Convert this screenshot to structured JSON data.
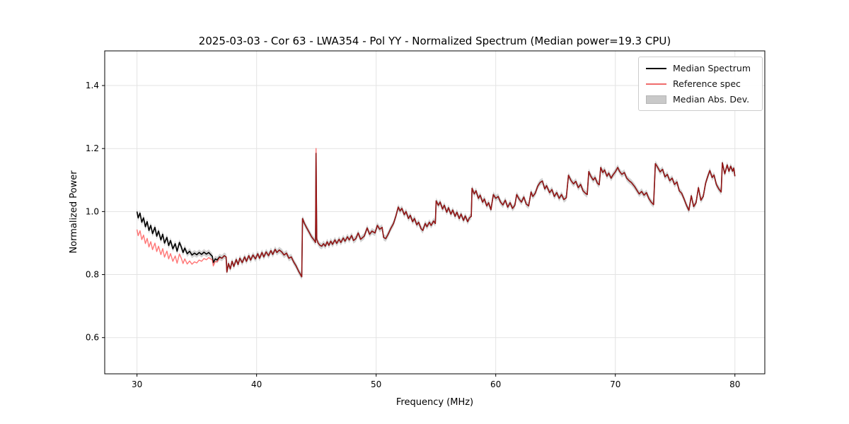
{
  "figure": {
    "title": "2025-03-03 - Cor 63 - LWA354 - Pol YY - Normalized Spectrum (Median power=19.3 CPU)",
    "xlabel": "Frequency (MHz)",
    "ylabel": "Normalized Power"
  },
  "chart_data": {
    "type": "line",
    "title": "2025-03-03 - Cor 63 - LWA354 - Pol YY - Normalized Spectrum (Median power=19.3 CPU)",
    "xlabel": "Frequency (MHz)",
    "ylabel": "Normalized Power",
    "xlim": [
      27.3,
      82.5
    ],
    "ylim": [
      0.485,
      1.51
    ],
    "xticks": [
      30,
      40,
      50,
      60,
      70,
      80
    ],
    "yticks": [
      0.6,
      0.8,
      1.0,
      1.2,
      1.4
    ],
    "grid": true,
    "grid_color": "#e3e3e3",
    "legend": {
      "position": "upper right",
      "entries": [
        {
          "label": "Median Spectrum",
          "type": "line",
          "color": "#000000"
        },
        {
          "label": "Reference spec",
          "type": "line",
          "color": "#f06c6c"
        },
        {
          "label": "Median Abs. Dev.",
          "type": "patch",
          "color": "#c9c9c9"
        }
      ]
    },
    "series": [
      {
        "name": "Median Spectrum",
        "color": "#000000",
        "width": 1.6,
        "points": [
          [
            30.0,
            1.0
          ],
          [
            30.1,
            0.98
          ],
          [
            30.25,
            0.995
          ],
          [
            30.4,
            0.966
          ],
          [
            30.55,
            0.98
          ],
          [
            30.7,
            0.952
          ],
          [
            30.85,
            0.968
          ],
          [
            31.0,
            0.94
          ],
          [
            31.15,
            0.956
          ],
          [
            31.3,
            0.93
          ],
          [
            31.5,
            0.95
          ],
          [
            31.65,
            0.922
          ],
          [
            31.8,
            0.938
          ],
          [
            32.0,
            0.91
          ],
          [
            32.15,
            0.928
          ],
          [
            32.3,
            0.9
          ],
          [
            32.5,
            0.918
          ],
          [
            32.65,
            0.892
          ],
          [
            32.8,
            0.908
          ],
          [
            33.0,
            0.882
          ],
          [
            33.2,
            0.898
          ],
          [
            33.35,
            0.874
          ],
          [
            33.55,
            0.902
          ],
          [
            33.7,
            0.888
          ],
          [
            33.85,
            0.87
          ],
          [
            34.0,
            0.884
          ],
          [
            34.2,
            0.866
          ],
          [
            34.4,
            0.874
          ],
          [
            34.6,
            0.862
          ],
          [
            34.8,
            0.868
          ],
          [
            35.0,
            0.863
          ],
          [
            35.2,
            0.87
          ],
          [
            35.4,
            0.864
          ],
          [
            35.6,
            0.871
          ],
          [
            35.8,
            0.865
          ],
          [
            36.0,
            0.87
          ],
          [
            36.2,
            0.862
          ],
          [
            36.3,
            0.858
          ],
          [
            36.38,
            0.838
          ],
          [
            36.55,
            0.85
          ],
          [
            36.7,
            0.846
          ],
          [
            36.9,
            0.856
          ],
          [
            37.1,
            0.852
          ],
          [
            37.3,
            0.86
          ],
          [
            37.45,
            0.856
          ],
          [
            37.52,
            0.808
          ],
          [
            37.65,
            0.835
          ],
          [
            37.8,
            0.818
          ],
          [
            37.95,
            0.842
          ],
          [
            38.1,
            0.826
          ],
          [
            38.3,
            0.848
          ],
          [
            38.45,
            0.832
          ],
          [
            38.6,
            0.852
          ],
          [
            38.8,
            0.838
          ],
          [
            39.0,
            0.856
          ],
          [
            39.15,
            0.842
          ],
          [
            39.35,
            0.86
          ],
          [
            39.5,
            0.846
          ],
          [
            39.7,
            0.862
          ],
          [
            39.9,
            0.85
          ],
          [
            40.1,
            0.866
          ],
          [
            40.25,
            0.852
          ],
          [
            40.45,
            0.87
          ],
          [
            40.6,
            0.856
          ],
          [
            40.8,
            0.872
          ],
          [
            41.0,
            0.86
          ],
          [
            41.2,
            0.876
          ],
          [
            41.35,
            0.864
          ],
          [
            41.55,
            0.88
          ],
          [
            41.7,
            0.87
          ],
          [
            41.9,
            0.878
          ],
          [
            42.1,
            0.872
          ],
          [
            42.3,
            0.862
          ],
          [
            42.5,
            0.868
          ],
          [
            42.7,
            0.852
          ],
          [
            42.9,
            0.856
          ],
          [
            43.1,
            0.84
          ],
          [
            43.3,
            0.828
          ],
          [
            43.5,
            0.812
          ],
          [
            43.7,
            0.798
          ],
          [
            43.78,
            0.793
          ],
          [
            43.84,
            0.978
          ],
          [
            44.0,
            0.962
          ],
          [
            44.2,
            0.948
          ],
          [
            44.4,
            0.934
          ],
          [
            44.6,
            0.92
          ],
          [
            44.8,
            0.91
          ],
          [
            44.93,
            0.902
          ],
          [
            44.97,
            1.185
          ],
          [
            45.03,
            0.912
          ],
          [
            45.15,
            0.9
          ],
          [
            45.3,
            0.893
          ],
          [
            45.45,
            0.89
          ],
          [
            45.6,
            0.898
          ],
          [
            45.75,
            0.89
          ],
          [
            45.9,
            0.904
          ],
          [
            46.05,
            0.893
          ],
          [
            46.2,
            0.906
          ],
          [
            46.35,
            0.896
          ],
          [
            46.55,
            0.91
          ],
          [
            46.7,
            0.899
          ],
          [
            46.9,
            0.912
          ],
          [
            47.05,
            0.902
          ],
          [
            47.25,
            0.916
          ],
          [
            47.4,
            0.906
          ],
          [
            47.6,
            0.92
          ],
          [
            47.75,
            0.91
          ],
          [
            47.95,
            0.924
          ],
          [
            48.1,
            0.908
          ],
          [
            48.3,
            0.914
          ],
          [
            48.5,
            0.932
          ],
          [
            48.7,
            0.912
          ],
          [
            49.0,
            0.922
          ],
          [
            49.25,
            0.948
          ],
          [
            49.45,
            0.928
          ],
          [
            49.65,
            0.938
          ],
          [
            49.9,
            0.932
          ],
          [
            50.1,
            0.956
          ],
          [
            50.3,
            0.944
          ],
          [
            50.5,
            0.95
          ],
          [
            50.62,
            0.918
          ],
          [
            50.8,
            0.914
          ],
          [
            51.0,
            0.928
          ],
          [
            51.2,
            0.945
          ],
          [
            51.45,
            0.962
          ],
          [
            51.65,
            0.986
          ],
          [
            51.85,
            1.014
          ],
          [
            52.0,
            1.002
          ],
          [
            52.15,
            1.01
          ],
          [
            52.35,
            0.99
          ],
          [
            52.5,
            1.0
          ],
          [
            52.7,
            0.978
          ],
          [
            52.85,
            0.988
          ],
          [
            53.05,
            0.968
          ],
          [
            53.2,
            0.978
          ],
          [
            53.4,
            0.958
          ],
          [
            53.55,
            0.966
          ],
          [
            53.75,
            0.946
          ],
          [
            53.9,
            0.94
          ],
          [
            54.1,
            0.962
          ],
          [
            54.25,
            0.952
          ],
          [
            54.45,
            0.966
          ],
          [
            54.6,
            0.956
          ],
          [
            54.8,
            0.97
          ],
          [
            54.95,
            0.962
          ],
          [
            55.02,
            1.034
          ],
          [
            55.2,
            1.02
          ],
          [
            55.35,
            1.03
          ],
          [
            55.55,
            1.008
          ],
          [
            55.7,
            1.02
          ],
          [
            55.9,
            0.998
          ],
          [
            56.05,
            1.012
          ],
          [
            56.25,
            0.992
          ],
          [
            56.4,
            1.005
          ],
          [
            56.6,
            0.985
          ],
          [
            56.75,
            0.998
          ],
          [
            56.95,
            0.978
          ],
          [
            57.1,
            0.992
          ],
          [
            57.3,
            0.972
          ],
          [
            57.45,
            0.986
          ],
          [
            57.65,
            0.968
          ],
          [
            57.8,
            0.98
          ],
          [
            57.95,
            0.985
          ],
          [
            58.02,
            1.074
          ],
          [
            58.2,
            1.056
          ],
          [
            58.35,
            1.066
          ],
          [
            58.55,
            1.042
          ],
          [
            58.7,
            1.052
          ],
          [
            58.9,
            1.03
          ],
          [
            59.05,
            1.04
          ],
          [
            59.25,
            1.018
          ],
          [
            59.4,
            1.028
          ],
          [
            59.6,
            1.006
          ],
          [
            59.8,
            1.054
          ],
          [
            60.0,
            1.042
          ],
          [
            60.2,
            1.048
          ],
          [
            60.4,
            1.03
          ],
          [
            60.6,
            1.021
          ],
          [
            60.8,
            1.036
          ],
          [
            61.0,
            1.014
          ],
          [
            61.2,
            1.028
          ],
          [
            61.4,
            1.01
          ],
          [
            61.6,
            1.02
          ],
          [
            61.75,
            1.054
          ],
          [
            61.95,
            1.04
          ],
          [
            62.15,
            1.03
          ],
          [
            62.35,
            1.046
          ],
          [
            62.55,
            1.024
          ],
          [
            62.75,
            1.018
          ],
          [
            62.95,
            1.062
          ],
          [
            63.1,
            1.048
          ],
          [
            63.3,
            1.058
          ],
          [
            63.5,
            1.08
          ],
          [
            63.7,
            1.092
          ],
          [
            63.9,
            1.097
          ],
          [
            64.1,
            1.072
          ],
          [
            64.25,
            1.082
          ],
          [
            64.5,
            1.06
          ],
          [
            64.7,
            1.07
          ],
          [
            64.9,
            1.048
          ],
          [
            65.1,
            1.06
          ],
          [
            65.3,
            1.042
          ],
          [
            65.5,
            1.054
          ],
          [
            65.7,
            1.038
          ],
          [
            65.9,
            1.044
          ],
          [
            66.08,
            1.115
          ],
          [
            66.3,
            1.098
          ],
          [
            66.5,
            1.088
          ],
          [
            66.7,
            1.096
          ],
          [
            66.9,
            1.076
          ],
          [
            67.1,
            1.086
          ],
          [
            67.3,
            1.066
          ],
          [
            67.5,
            1.058
          ],
          [
            67.65,
            1.054
          ],
          [
            67.78,
            1.127
          ],
          [
            67.95,
            1.112
          ],
          [
            68.15,
            1.1
          ],
          [
            68.3,
            1.108
          ],
          [
            68.5,
            1.09
          ],
          [
            68.65,
            1.085
          ],
          [
            68.78,
            1.14
          ],
          [
            68.95,
            1.124
          ],
          [
            69.1,
            1.132
          ],
          [
            69.3,
            1.112
          ],
          [
            69.45,
            1.122
          ],
          [
            69.65,
            1.106
          ],
          [
            69.8,
            1.116
          ],
          [
            70.0,
            1.126
          ],
          [
            70.2,
            1.14
          ],
          [
            70.35,
            1.128
          ],
          [
            70.55,
            1.118
          ],
          [
            70.75,
            1.124
          ],
          [
            70.95,
            1.106
          ],
          [
            71.15,
            1.098
          ],
          [
            71.35,
            1.092
          ],
          [
            71.6,
            1.08
          ],
          [
            71.8,
            1.068
          ],
          [
            72.0,
            1.056
          ],
          [
            72.2,
            1.064
          ],
          [
            72.4,
            1.052
          ],
          [
            72.6,
            1.06
          ],
          [
            72.8,
            1.042
          ],
          [
            73.0,
            1.03
          ],
          [
            73.2,
            1.022
          ],
          [
            73.35,
            1.152
          ],
          [
            73.55,
            1.14
          ],
          [
            73.75,
            1.126
          ],
          [
            73.95,
            1.134
          ],
          [
            74.15,
            1.11
          ],
          [
            74.35,
            1.118
          ],
          [
            74.55,
            1.098
          ],
          [
            74.75,
            1.106
          ],
          [
            74.95,
            1.086
          ],
          [
            75.15,
            1.094
          ],
          [
            75.35,
            1.066
          ],
          [
            75.55,
            1.058
          ],
          [
            75.75,
            1.04
          ],
          [
            75.95,
            1.02
          ],
          [
            76.15,
            1.004
          ],
          [
            76.35,
            1.05
          ],
          [
            76.55,
            1.016
          ],
          [
            76.75,
            1.028
          ],
          [
            76.95,
            1.076
          ],
          [
            77.15,
            1.036
          ],
          [
            77.35,
            1.048
          ],
          [
            77.55,
            1.09
          ],
          [
            77.75,
            1.114
          ],
          [
            77.9,
            1.13
          ],
          [
            78.1,
            1.108
          ],
          [
            78.25,
            1.116
          ],
          [
            78.45,
            1.086
          ],
          [
            78.65,
            1.072
          ],
          [
            78.85,
            1.062
          ],
          [
            78.95,
            1.155
          ],
          [
            79.15,
            1.12
          ],
          [
            79.35,
            1.148
          ],
          [
            79.5,
            1.128
          ],
          [
            79.65,
            1.144
          ],
          [
            79.8,
            1.128
          ],
          [
            79.9,
            1.138
          ],
          [
            80.0,
            1.112
          ]
        ]
      },
      {
        "name": "Reference spec",
        "color": "#ff2222",
        "opacity": 0.62,
        "width": 1.4,
        "derived_from_median": true,
        "low_freq_offset_nodes": [
          [
            30.0,
            0.057
          ],
          [
            31.5,
            0.05
          ],
          [
            33.0,
            0.04
          ],
          [
            34.0,
            0.034
          ],
          [
            35.0,
            0.026
          ],
          [
            36.0,
            0.016
          ],
          [
            36.5,
            0.009
          ],
          [
            37.0,
            0.0
          ]
        ],
        "spike_override": {
          "freq": 44.97,
          "value": 1.2
        }
      },
      {
        "name": "Median Abs. Dev.",
        "type": "band",
        "color": "#9e9e9e",
        "opacity": 0.45,
        "halfwidth": 0.01
      }
    ]
  }
}
